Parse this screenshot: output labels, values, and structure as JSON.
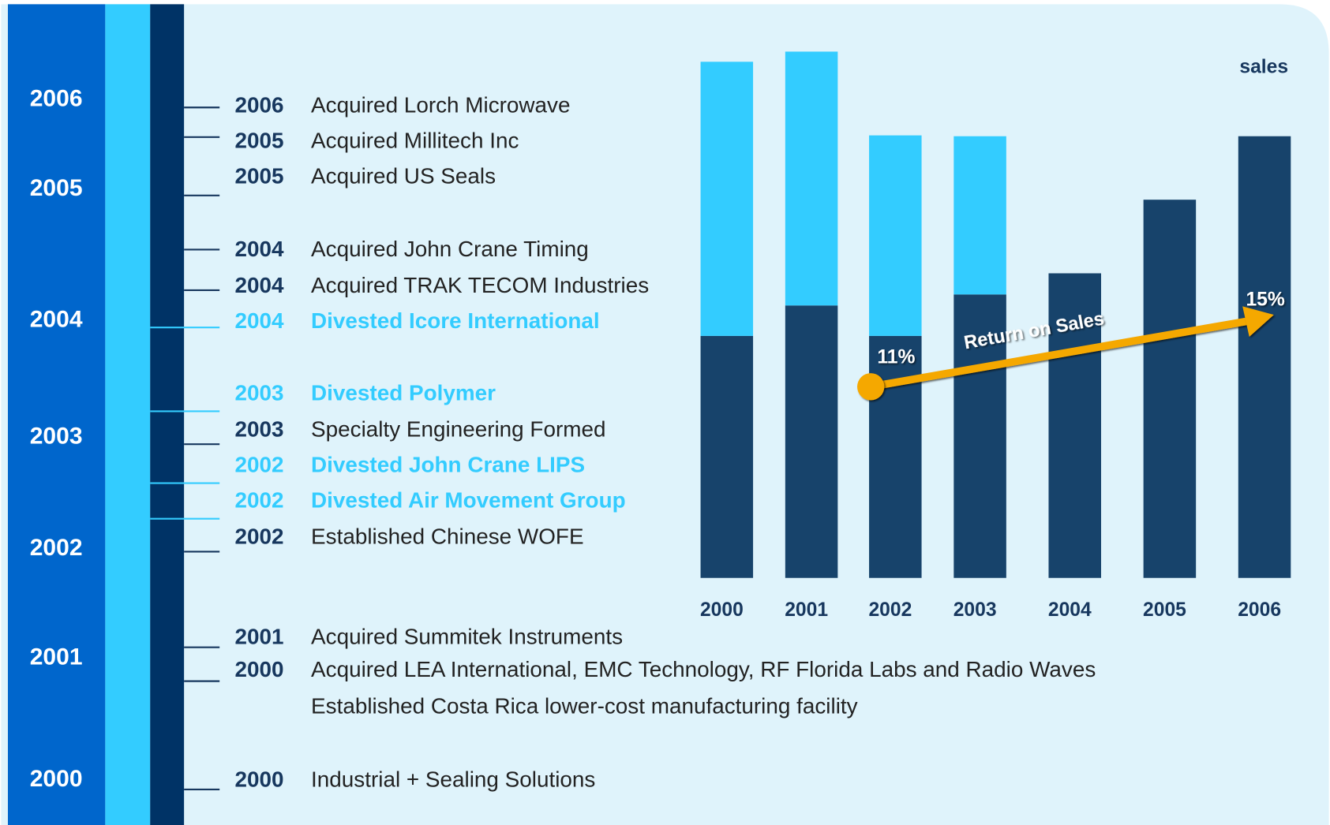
{
  "timeline": {
    "years": [
      "2006",
      "2005",
      "2004",
      "2003",
      "2002",
      "2001",
      "2000"
    ],
    "events": [
      {
        "year": "2006",
        "text": "Acquired Lorch Microwave"
      },
      {
        "year": "2005",
        "text": "Acquired Millitech Inc"
      },
      {
        "year": "2005",
        "text": "Acquired US Seals"
      },
      {
        "year": "2004",
        "text": "Acquired John Crane Timing"
      },
      {
        "year": "2004",
        "text": "Acquired TRAK TECOM Industries"
      },
      {
        "year": "2004",
        "text": "Divested Icore International",
        "color": "#33ccff"
      },
      {
        "year": "2003",
        "text": "Divested Polymer",
        "color": "#33ccff"
      },
      {
        "year": "2003",
        "text": "Specialty Engineering Formed"
      },
      {
        "year": "2002",
        "text": "Divested John Crane LIPS",
        "color": "#33ccff"
      },
      {
        "year": "2002",
        "text": "Divested Air Movement Group",
        "color": "#33ccff"
      },
      {
        "year": "2002",
        "text": "Established Chinese WOFE"
      },
      {
        "year": "2001",
        "text": "Acquired Summitek Instruments"
      },
      {
        "year": "2000",
        "text": "Acquired LEA International, EMC Technology, RF Florida Labs and Radio Waves"
      },
      {
        "text": "Established Costa Rica lower-cost manufacturing facility"
      },
      {
        "year": "2000",
        "text": "Industrial + Sealing Solutions"
      }
    ]
  },
  "chart_data": {
    "type": "stacked_bar",
    "categories": [
      "2000",
      "2001",
      "2002",
      "2003",
      "2004",
      "2005",
      "2006"
    ],
    "series": [
      {
        "color": "#17436b",
        "values": [
          286,
          322,
          286,
          335,
          360,
          447,
          522
        ]
      },
      {
        "color": "#33ccff",
        "values": [
          324,
          300,
          237,
          187,
          0,
          0,
          0
        ]
      }
    ],
    "ylim": [
      0,
      622
    ],
    "annotations": {
      "sales": "sales",
      "trend_label": "Return on Sales",
      "start_label": "11%",
      "end_label": "15%"
    },
    "arrow_color": "#f5a800"
  }
}
